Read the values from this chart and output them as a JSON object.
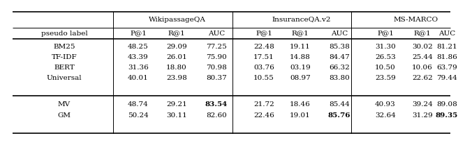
{
  "group_headers": [
    "WikipassageQA",
    "InsuranceQA.v2",
    "MS-MARCO"
  ],
  "sub_headers": [
    "P@1",
    "R@1",
    "AUC",
    "P@1",
    "R@1",
    "AUC",
    "P@1",
    "R@1",
    "AUC"
  ],
  "row_header": "pseudo label",
  "rows_top": [
    [
      "BM25",
      "48.25",
      "29.09",
      "77.25",
      "22.48",
      "19.11",
      "85.38",
      "31.30",
      "30.02",
      "81.21"
    ],
    [
      "TF-IDF",
      "43.39",
      "26.01",
      "75.90",
      "17.51",
      "14.88",
      "84.47",
      "26.53",
      "25.44",
      "81.86"
    ],
    [
      "BERT",
      "31.36",
      "18.80",
      "70.98",
      "03.76",
      "03.19",
      "66.32",
      "10.50",
      "10.06",
      "63.79"
    ],
    [
      "Universal",
      "40.01",
      "23.98",
      "80.37",
      "10.55",
      "08.97",
      "83.80",
      "23.59",
      "22.62",
      "79.44"
    ]
  ],
  "rows_bottom": [
    [
      "MV",
      "48.74",
      "29.21",
      "83.54",
      "21.72",
      "18.46",
      "85.44",
      "40.93",
      "39.24",
      "89.08"
    ],
    [
      "GM",
      "50.24",
      "30.11",
      "82.60",
      "22.46",
      "19.01",
      "85.76",
      "32.64",
      "31.29",
      "89.35"
    ]
  ],
  "bold_mv": [
    3
  ],
  "bold_gm": [
    6,
    9
  ],
  "bg_color": "#ffffff",
  "text_color": "#000000",
  "font_size": 7.5
}
